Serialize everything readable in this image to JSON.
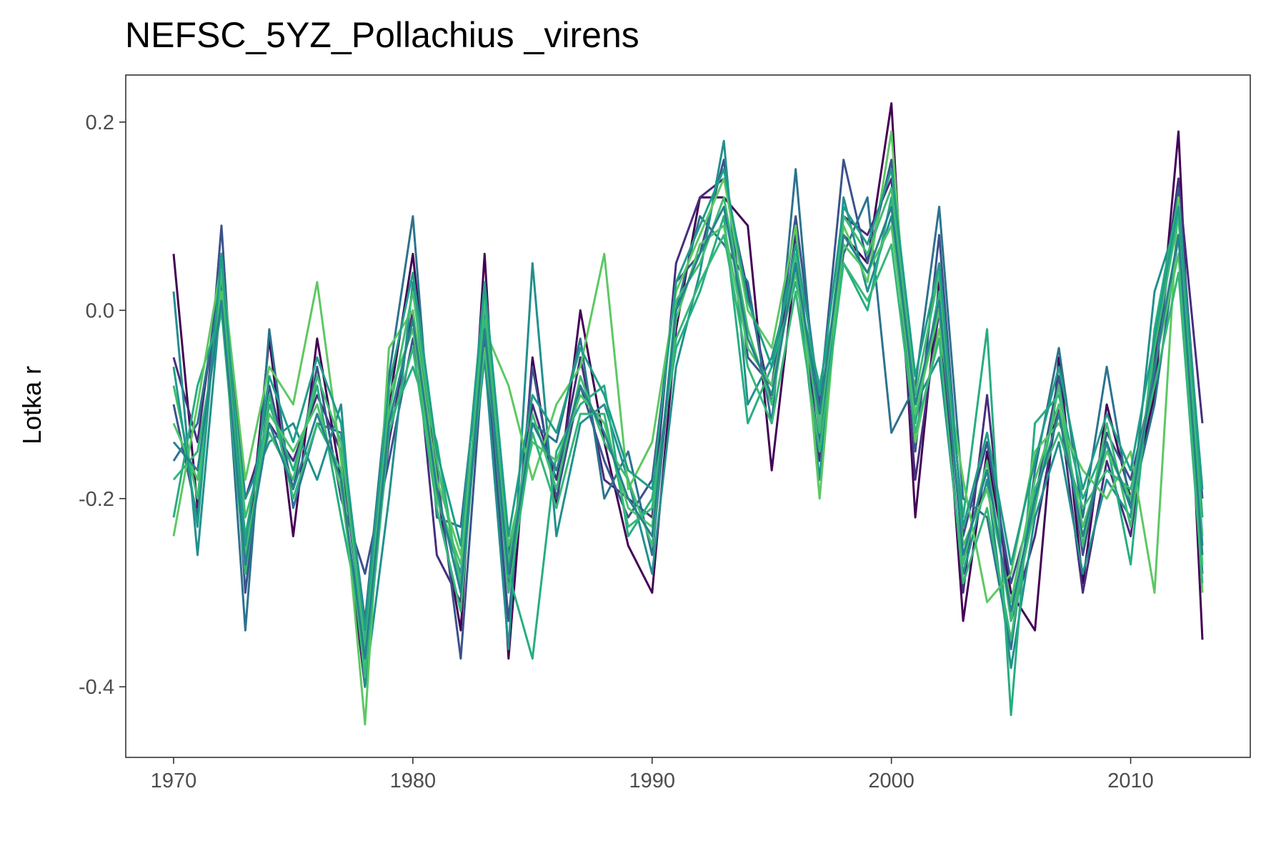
{
  "chart_data": {
    "type": "line",
    "title": "NEFSC_5YZ_Pollachius _virens",
    "xlabel": "",
    "ylabel": "Lotka r",
    "xlim": [
      1968,
      2015
    ],
    "ylim": [
      -0.475,
      0.25
    ],
    "x_ticks": [
      1970,
      1980,
      1990,
      2000,
      2010
    ],
    "x_tick_labels": [
      "1970",
      "1980",
      "1990",
      "2000",
      "2010"
    ],
    "y_ticks": [
      0.2,
      0.0,
      -0.2,
      -0.4
    ],
    "y_tick_labels": [
      "0.2",
      "0.0",
      "-0.2",
      "-0.4"
    ],
    "grid": false,
    "legend": "none",
    "x": [
      1970,
      1971,
      1972,
      1973,
      1974,
      1975,
      1976,
      1977,
      1978,
      1979,
      1980,
      1981,
      1982,
      1983,
      1984,
      1985,
      1986,
      1987,
      1988,
      1989,
      1990,
      1991,
      1992,
      1993,
      1994,
      1995,
      1996,
      1997,
      1998,
      1999,
      2000,
      2001,
      2002,
      2003,
      2004,
      2005,
      2006,
      2007,
      2008,
      2009,
      2010,
      2011,
      2012,
      2013
    ],
    "series": [
      {
        "color": "#440154",
        "values": [
          0.06,
          -0.21,
          0.06,
          -0.28,
          -0.03,
          -0.24,
          -0.03,
          -0.18,
          -0.4,
          -0.1,
          0.06,
          -0.19,
          -0.34,
          0.06,
          -0.37,
          -0.05,
          -0.21,
          0.0,
          -0.14,
          -0.25,
          -0.3,
          -0.02,
          0.12,
          0.12,
          0.09,
          -0.17,
          0.05,
          -0.11,
          0.08,
          0.05,
          0.22,
          -0.22,
          0.03,
          -0.33,
          -0.15,
          -0.3,
          -0.34,
          -0.05,
          -0.29,
          -0.1,
          -0.2,
          -0.09,
          0.19,
          -0.35
        ]
      },
      {
        "color": "#472d7b",
        "values": [
          -0.05,
          -0.14,
          0.05,
          -0.2,
          -0.12,
          -0.16,
          -0.09,
          -0.15,
          -0.36,
          -0.14,
          0.0,
          -0.26,
          -0.31,
          0.02,
          -0.29,
          -0.1,
          -0.18,
          -0.05,
          -0.18,
          -0.2,
          -0.22,
          0.05,
          0.12,
          0.14,
          0.02,
          -0.1,
          0.08,
          -0.16,
          0.1,
          0.08,
          0.14,
          -0.18,
          0.0,
          -0.3,
          -0.09,
          -0.33,
          -0.24,
          -0.1,
          -0.3,
          -0.16,
          -0.24,
          -0.05,
          0.14,
          -0.12
        ]
      },
      {
        "color": "#3b528b",
        "values": [
          -0.1,
          -0.22,
          0.09,
          -0.3,
          -0.08,
          -0.19,
          -0.06,
          -0.2,
          -0.28,
          -0.16,
          -0.03,
          -0.17,
          -0.37,
          -0.03,
          -0.33,
          -0.06,
          -0.2,
          -0.08,
          -0.16,
          -0.22,
          -0.18,
          0.03,
          0.06,
          0.16,
          -0.05,
          -0.08,
          0.1,
          -0.1,
          0.16,
          0.05,
          0.16,
          -0.15,
          0.08,
          -0.24,
          -0.14,
          -0.29,
          -0.2,
          -0.07,
          -0.26,
          -0.13,
          -0.18,
          -0.07,
          0.13,
          -0.2
        ]
      },
      {
        "color": "#2c728e",
        "values": [
          -0.16,
          -0.12,
          0.03,
          -0.34,
          -0.02,
          -0.21,
          -0.12,
          -0.13,
          -0.33,
          -0.07,
          0.1,
          -0.22,
          -0.23,
          0.0,
          -0.26,
          -0.12,
          -0.14,
          -0.03,
          -0.2,
          -0.15,
          -0.26,
          0.0,
          0.1,
          0.07,
          0.03,
          -0.12,
          0.15,
          -0.14,
          0.06,
          0.12,
          -0.13,
          -0.08,
          0.11,
          -0.2,
          -0.22,
          -0.36,
          -0.17,
          -0.04,
          -0.22,
          -0.06,
          -0.21,
          -0.1,
          0.08,
          -0.28
        ]
      },
      {
        "color": "#21908d",
        "values": [
          0.02,
          -0.26,
          0.02,
          -0.2,
          -0.14,
          -0.12,
          -0.18,
          -0.1,
          -0.4,
          -0.2,
          0.03,
          -0.2,
          -0.28,
          -0.05,
          -0.36,
          0.05,
          -0.24,
          -0.12,
          -0.1,
          -0.18,
          -0.28,
          -0.06,
          0.04,
          0.18,
          -0.1,
          -0.05,
          0.05,
          -0.18,
          0.12,
          0.02,
          0.1,
          -0.1,
          -0.05,
          -0.28,
          -0.18,
          -0.38,
          -0.22,
          -0.14,
          -0.28,
          -0.18,
          -0.22,
          0.02,
          0.1,
          -0.25
        ]
      },
      {
        "color": "#27ad81",
        "values": [
          -0.22,
          -0.08,
          0.0,
          -0.24,
          -0.1,
          -0.17,
          -0.08,
          -0.22,
          -0.35,
          -0.12,
          -0.06,
          -0.14,
          -0.3,
          0.02,
          -0.28,
          -0.37,
          -0.15,
          -0.1,
          -0.08,
          -0.24,
          -0.2,
          -0.04,
          0.02,
          0.1,
          -0.12,
          -0.06,
          0.03,
          -0.08,
          0.05,
          0.0,
          0.12,
          -0.12,
          0.02,
          -0.22,
          -0.02,
          -0.43,
          -0.12,
          -0.09,
          -0.2,
          -0.14,
          -0.27,
          -0.02,
          0.12,
          -0.22
        ]
      },
      {
        "color": "#5dc863",
        "values": [
          -0.24,
          -0.1,
          0.05,
          -0.18,
          -0.06,
          -0.1,
          0.03,
          -0.16,
          -0.44,
          -0.04,
          0.0,
          -0.18,
          -0.26,
          -0.02,
          -0.08,
          -0.18,
          -0.1,
          -0.06,
          0.06,
          -0.19,
          -0.14,
          0.02,
          0.08,
          0.14,
          0.0,
          -0.04,
          0.09,
          -0.2,
          0.09,
          0.03,
          0.19,
          -0.14,
          -0.02,
          -0.18,
          -0.31,
          -0.28,
          -0.15,
          -0.12,
          -0.17,
          -0.2,
          -0.15,
          -0.3,
          0.12,
          -0.3
        ]
      },
      {
        "color": "#4ec36b",
        "values": [
          -0.12,
          -0.18,
          0.02,
          -0.26,
          -0.11,
          -0.15,
          -0.1,
          -0.19,
          -0.38,
          -0.09,
          -0.02,
          -0.2,
          -0.27,
          -0.04,
          -0.25,
          -0.14,
          -0.16,
          -0.09,
          -0.12,
          -0.21,
          -0.23,
          -0.01,
          0.07,
          0.09,
          -0.04,
          -0.08,
          0.04,
          -0.12,
          0.07,
          0.04,
          0.09,
          -0.11,
          0.0,
          -0.25,
          -0.19,
          -0.31,
          -0.18,
          -0.1,
          -0.23,
          -0.15,
          -0.2,
          -0.06,
          0.06,
          -0.27
        ]
      },
      {
        "color": "#3fbc73",
        "values": [
          -0.08,
          -0.2,
          0.04,
          -0.22,
          -0.13,
          -0.18,
          -0.07,
          -0.14,
          -0.36,
          -0.11,
          0.02,
          -0.16,
          -0.29,
          0.01,
          -0.27,
          -0.11,
          -0.19,
          -0.07,
          -0.14,
          -0.18,
          -0.25,
          0.01,
          0.05,
          0.12,
          -0.02,
          -0.1,
          0.06,
          -0.13,
          0.1,
          0.06,
          0.13,
          -0.09,
          0.04,
          -0.27,
          -0.16,
          -0.33,
          -0.21,
          -0.08,
          -0.25,
          -0.12,
          -0.23,
          -0.04,
          0.1,
          -0.24
        ]
      },
      {
        "color": "#35b779",
        "values": [
          -0.18,
          -0.15,
          0.0,
          -0.28,
          -0.09,
          -0.2,
          -0.12,
          -0.17,
          -0.39,
          -0.13,
          -0.04,
          -0.21,
          -0.32,
          -0.01,
          -0.3,
          -0.13,
          -0.21,
          -0.11,
          -0.11,
          -0.23,
          -0.21,
          -0.03,
          0.03,
          0.08,
          -0.06,
          -0.12,
          0.02,
          -0.15,
          0.05,
          0.01,
          0.07,
          -0.13,
          -0.03,
          -0.29,
          -0.21,
          -0.35,
          -0.19,
          -0.13,
          -0.21,
          -0.17,
          -0.19,
          -0.08,
          0.04,
          -0.29
        ]
      },
      {
        "color": "#1f9e89",
        "values": [
          -0.06,
          -0.23,
          0.06,
          -0.25,
          -0.07,
          -0.14,
          -0.05,
          -0.12,
          -0.34,
          -0.08,
          0.04,
          -0.15,
          -0.25,
          0.03,
          -0.24,
          -0.09,
          -0.13,
          -0.04,
          -0.09,
          -0.17,
          -0.19,
          0.03,
          0.09,
          0.15,
          0.01,
          -0.06,
          0.07,
          -0.09,
          0.11,
          0.07,
          0.15,
          -0.07,
          0.05,
          -0.23,
          -0.13,
          -0.27,
          -0.16,
          -0.06,
          -0.19,
          -0.11,
          -0.17,
          -0.03,
          0.11,
          -0.19
        ]
      },
      {
        "color": "#26828e",
        "values": [
          -0.14,
          -0.17,
          0.01,
          -0.27,
          -0.12,
          -0.19,
          -0.11,
          -0.18,
          -0.37,
          -0.12,
          -0.01,
          -0.19,
          -0.3,
          -0.02,
          -0.28,
          -0.12,
          -0.17,
          -0.08,
          -0.13,
          -0.2,
          -0.24,
          0.0,
          0.06,
          0.11,
          -0.03,
          -0.09,
          0.05,
          -0.11,
          0.08,
          0.04,
          0.11,
          -0.1,
          0.01,
          -0.26,
          -0.17,
          -0.32,
          -0.2,
          -0.11,
          -0.24,
          -0.14,
          -0.21,
          -0.06,
          0.08,
          -0.26
        ]
      }
    ]
  }
}
